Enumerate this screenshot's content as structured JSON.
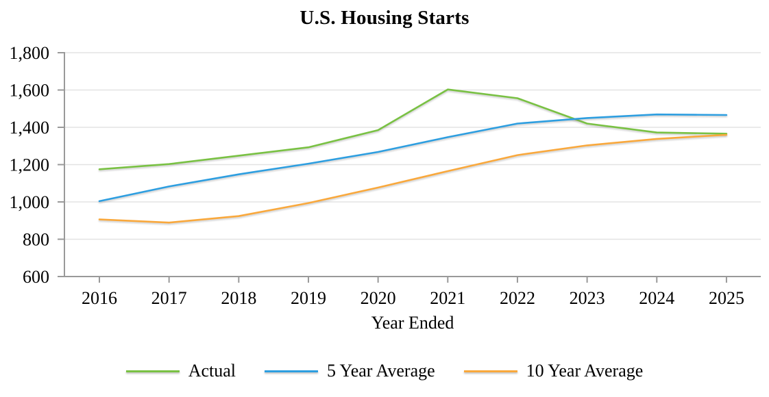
{
  "page": {
    "background": "#FFFFFF"
  },
  "chart_data": {
    "type": "line",
    "title": "U.S. Housing Starts",
    "xlabel": "Year Ended",
    "ylabel": "",
    "grid": "horizontal",
    "legend_position": "bottom",
    "axis_color": "#999999",
    "grid_color": "#E3E3E3",
    "text_color": "#000000",
    "categories": [
      "2016",
      "2017",
      "2018",
      "2019",
      "2020",
      "2021",
      "2022",
      "2023",
      "2024",
      "2025"
    ],
    "y_axis": {
      "min": 600,
      "max": 1800,
      "tick_values": [
        600,
        800,
        1000,
        1200,
        1400,
        1600,
        1800
      ],
      "tick_labels": [
        "600",
        "800",
        "1,000",
        "1,200",
        "1,400",
        "1,600",
        "1,800"
      ]
    },
    "series": [
      {
        "name": "Actual",
        "color": "#79C143",
        "values": [
          1175,
          1203,
          1248,
          1293,
          1385,
          1603,
          1556,
          1420,
          1372,
          1366
        ]
      },
      {
        "name": "5 Year Average",
        "color": "#2D9EE0",
        "values": [
          1004,
          1083,
          1148,
          1205,
          1268,
          1347,
          1420,
          1450,
          1469,
          1466
        ]
      },
      {
        "name": "10 Year Average",
        "color": "#F9A83C",
        "values": [
          906,
          889,
          924,
          994,
          1077,
          1165,
          1251,
          1303,
          1338,
          1360
        ]
      }
    ]
  }
}
